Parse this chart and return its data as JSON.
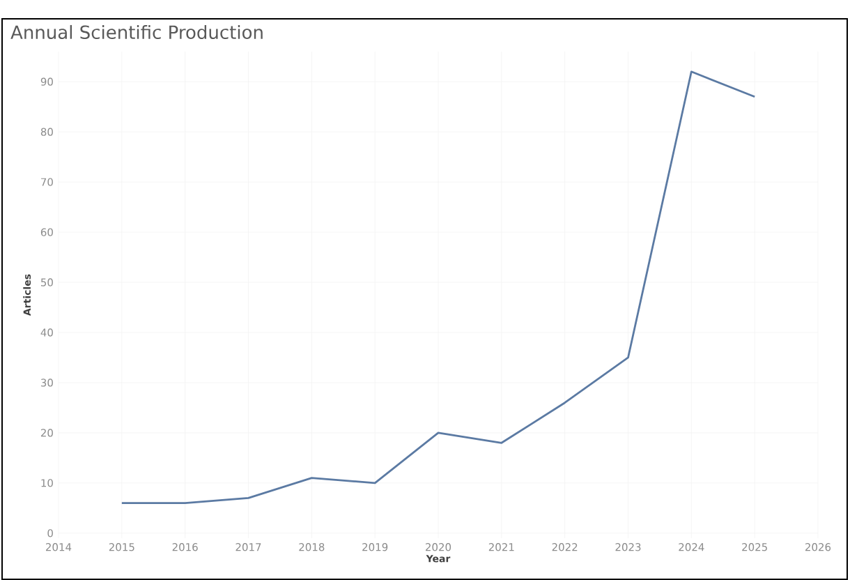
{
  "chart_data": {
    "type": "line",
    "title": "Annual Scientific Production",
    "xlabel": "Year",
    "ylabel": "Articles",
    "x": [
      2015,
      2016,
      2017,
      2018,
      2019,
      2020,
      2021,
      2022,
      2023,
      2024,
      2025
    ],
    "values": [
      6,
      6,
      7,
      11,
      10,
      20,
      18,
      26,
      35,
      92,
      87
    ],
    "color": "#5b7aa3",
    "xlim": [
      2014,
      2026
    ],
    "xticks": [
      2014,
      2015,
      2016,
      2017,
      2018,
      2019,
      2020,
      2021,
      2022,
      2023,
      2024,
      2025,
      2026
    ],
    "ylim": [
      -1,
      96
    ],
    "yticks": [
      0,
      10,
      20,
      30,
      40,
      50,
      60,
      70,
      80,
      90
    ],
    "grid": true,
    "marker": "none",
    "line_style": "solid"
  }
}
